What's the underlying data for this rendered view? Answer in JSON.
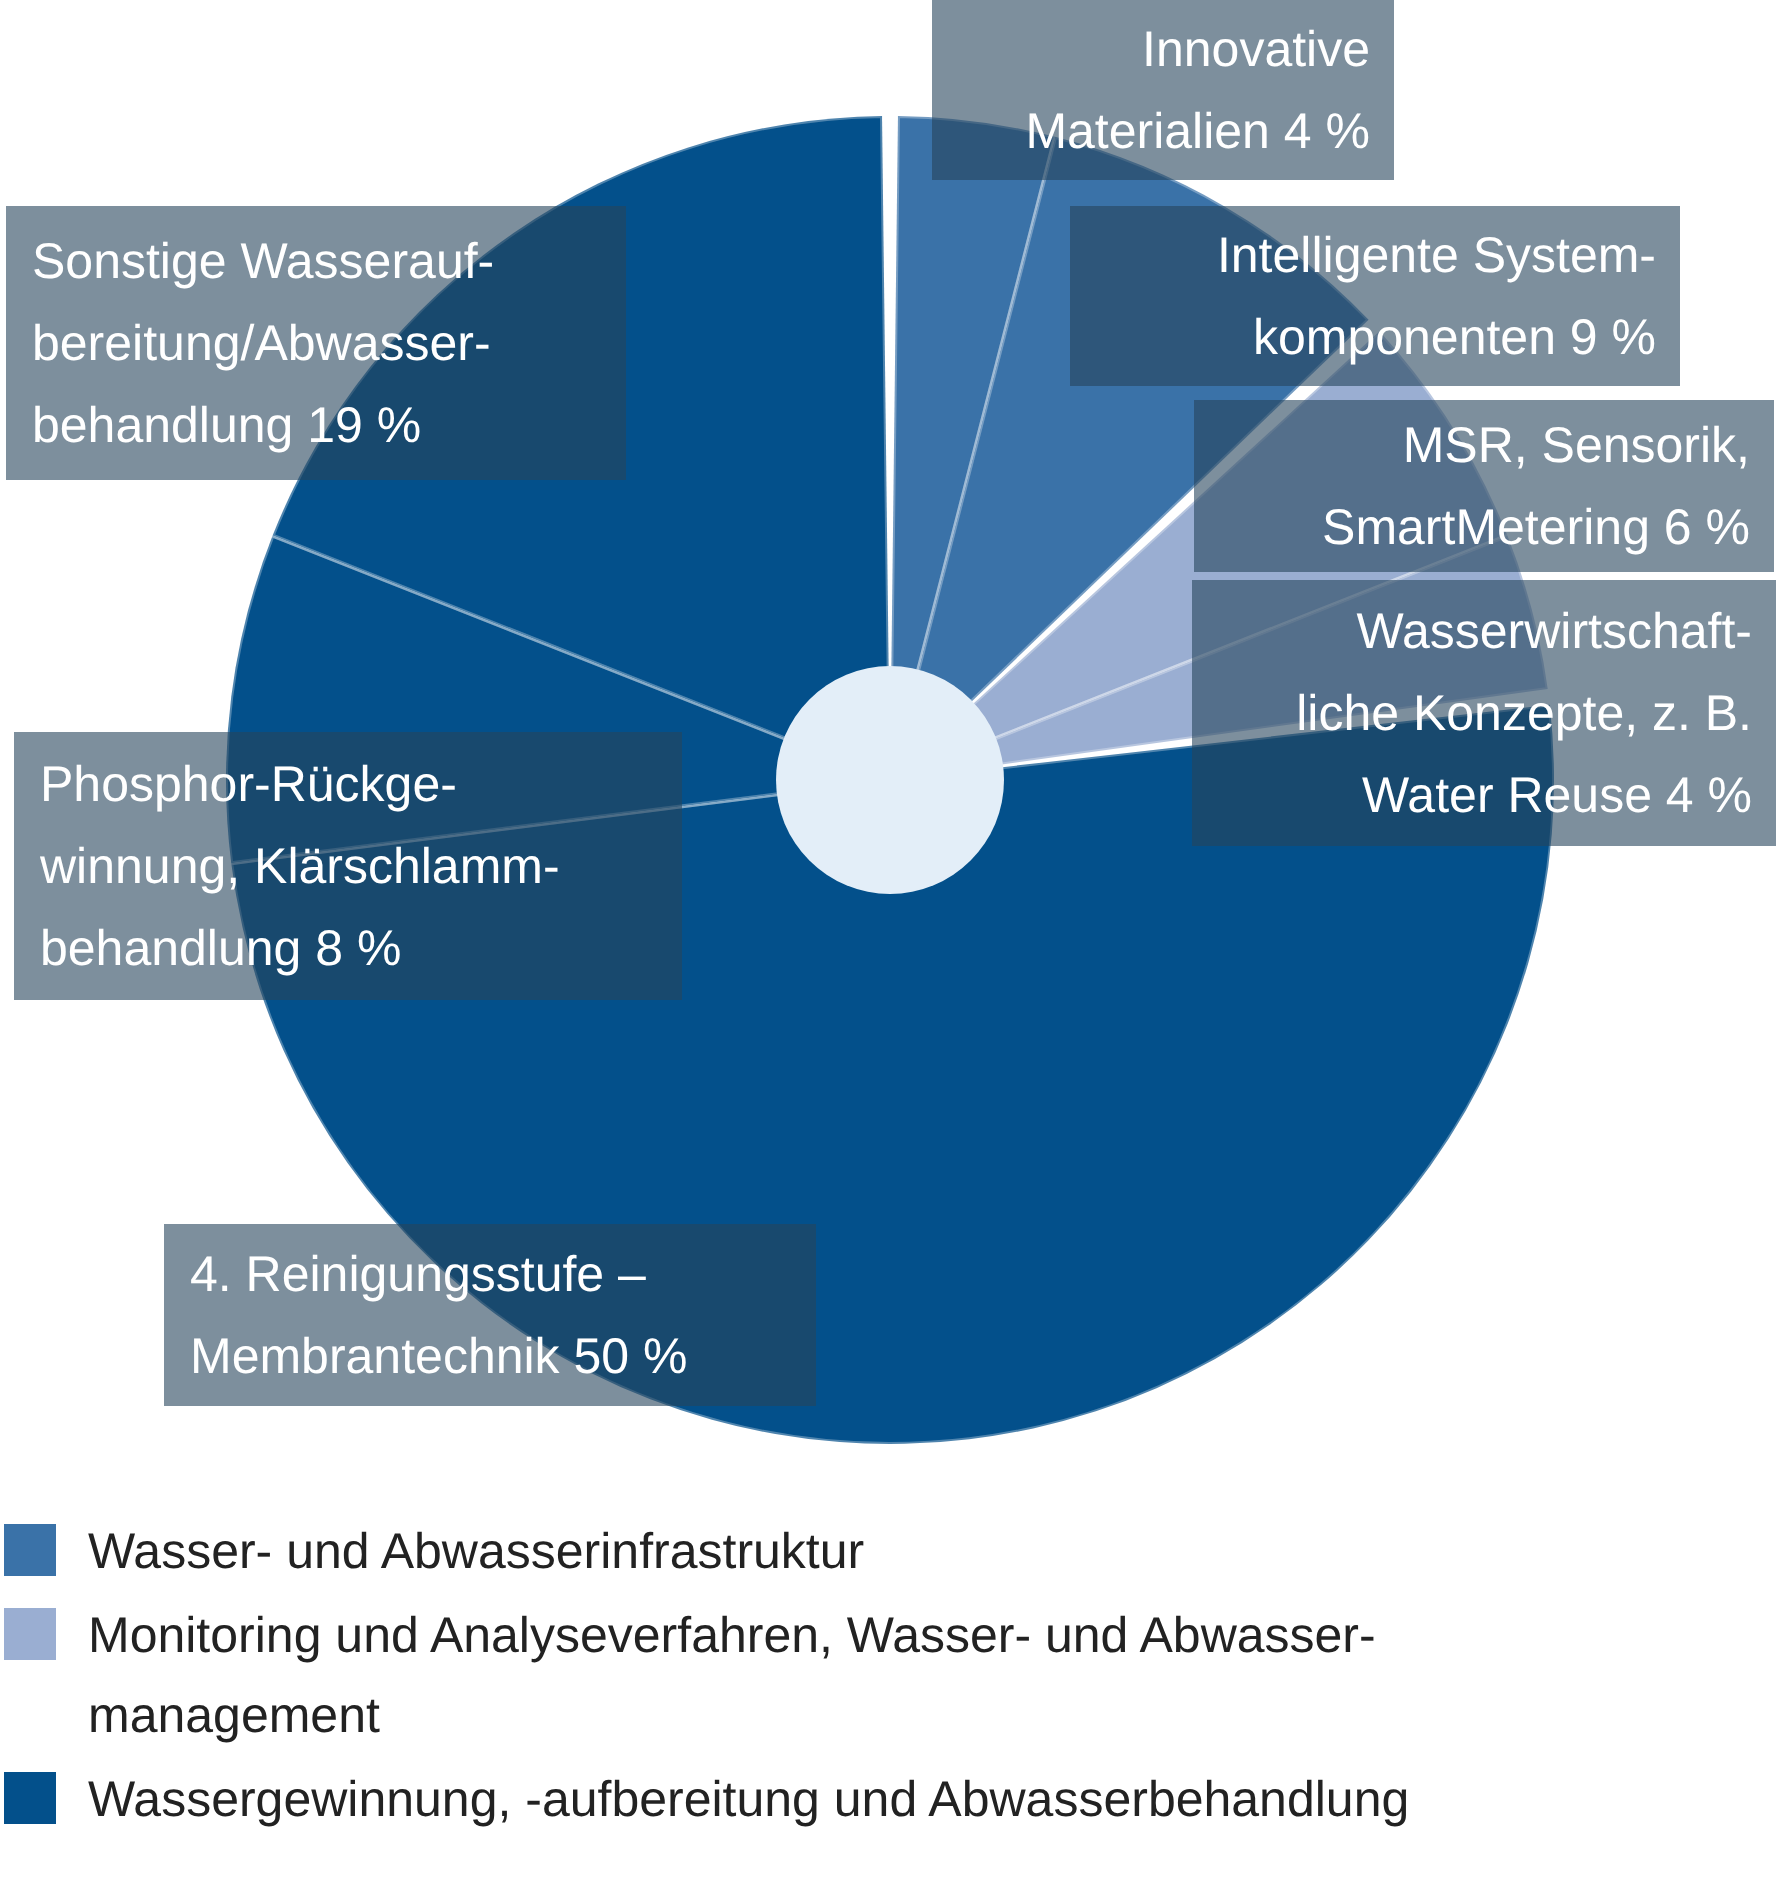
{
  "chart_data": {
    "type": "pie",
    "categories": [
      "Innovative\nMaterialien",
      "Intelligente System-\nkomponenten",
      "MSR, Sensorik,\nSmartMetering",
      "Wasserwirtschaft-\nliche Konzepte, z. B.\nWater Reuse",
      "4. Reinigungsstufe –\nMembrantechnik",
      "Phosphor-Rückge-\nwinnung, Klärschlamm-\nbehandlung",
      "Sonstige Wasserauf-\nbereitung/Abwasser-\nbehandlung"
    ],
    "values": [
      4,
      9,
      6,
      4,
      50,
      8,
      19
    ],
    "colors": [
      "#3a72a8",
      "#3a72a8",
      "#9aaed2",
      "#9aaed2",
      "#03508b",
      "#03508b",
      "#03508b"
    ],
    "value_labels": [
      "4 %",
      "9 %",
      "6 %",
      "4 %",
      "50 %",
      "8 %",
      "19 %"
    ],
    "annotations": [
      "Wasser- und Abwasserinfrastruktur",
      "Monitoring und Analyseverfahren, Wasser- und Abwasser-\nmanagement",
      "Wassergewinnung, -aufbereitung und Abwasserbehandlung"
    ]
  }
}
